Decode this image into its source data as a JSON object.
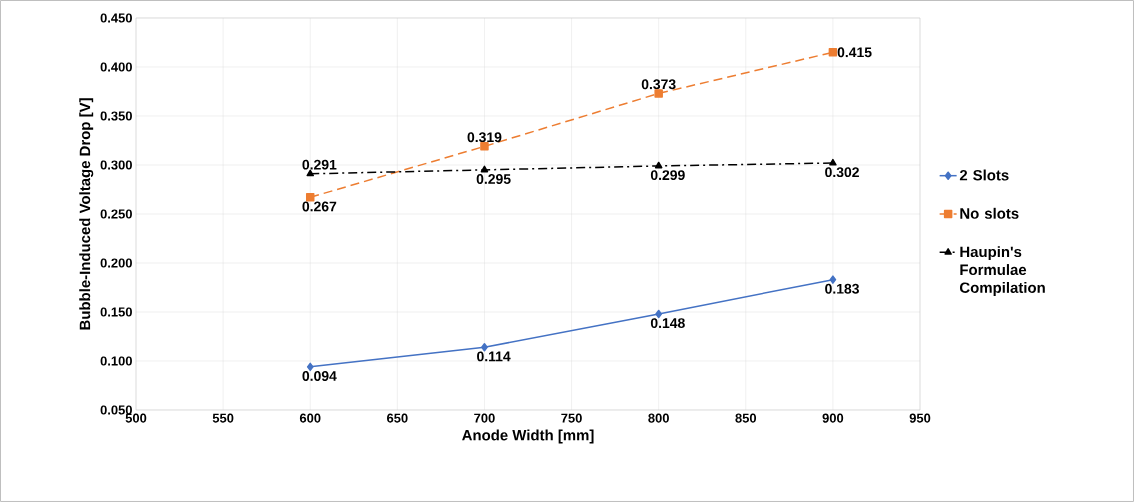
{
  "chart_data": {
    "type": "line",
    "xlabel": "Anode Width [mm]",
    "ylabel": "Bubble-Induced Voltage Drop [V]",
    "x": [
      600,
      700,
      800,
      900
    ],
    "series": [
      {
        "name": "2 Slots",
        "color": "#4472c4",
        "values": [
          0.094,
          0.114,
          0.148,
          0.183
        ],
        "value_labels": [
          "0.094",
          "0.114",
          "0.148",
          "0.183"
        ],
        "marker": "diamond",
        "line_style": "solid"
      },
      {
        "name": "No slots",
        "color": "#ed7d31",
        "values": [
          0.267,
          0.319,
          0.373,
          0.415
        ],
        "value_labels": [
          "0.267",
          "0.319",
          "0.373",
          "0.415"
        ],
        "marker": "square",
        "line_style": "dashed"
      },
      {
        "name": "Haupin's Formulae Compilation",
        "color": "#000000",
        "values": [
          0.291,
          0.295,
          0.299,
          0.302
        ],
        "value_labels": [
          "0.291",
          "0.295",
          "0.299",
          "0.302"
        ],
        "marker": "triangle",
        "line_style": "dashdot"
      }
    ],
    "xlim": [
      500,
      950
    ],
    "xticks": [
      500,
      550,
      600,
      650,
      700,
      750,
      800,
      850,
      900,
      950
    ],
    "ylim": [
      0.05,
      0.45
    ],
    "yticks": [
      {
        "value": 0.05,
        "label": "0.050"
      },
      {
        "value": 0.1,
        "label": "0.100"
      },
      {
        "value": 0.15,
        "label": "0.150"
      },
      {
        "value": 0.2,
        "label": "0.200"
      },
      {
        "value": 0.25,
        "label": "0.250"
      },
      {
        "value": 0.3,
        "label": "0.300"
      },
      {
        "value": 0.35,
        "label": "0.350"
      },
      {
        "value": 0.4,
        "label": "0.400"
      },
      {
        "value": 0.45,
        "label": "0.450"
      }
    ],
    "grid": true,
    "legend": "right"
  }
}
